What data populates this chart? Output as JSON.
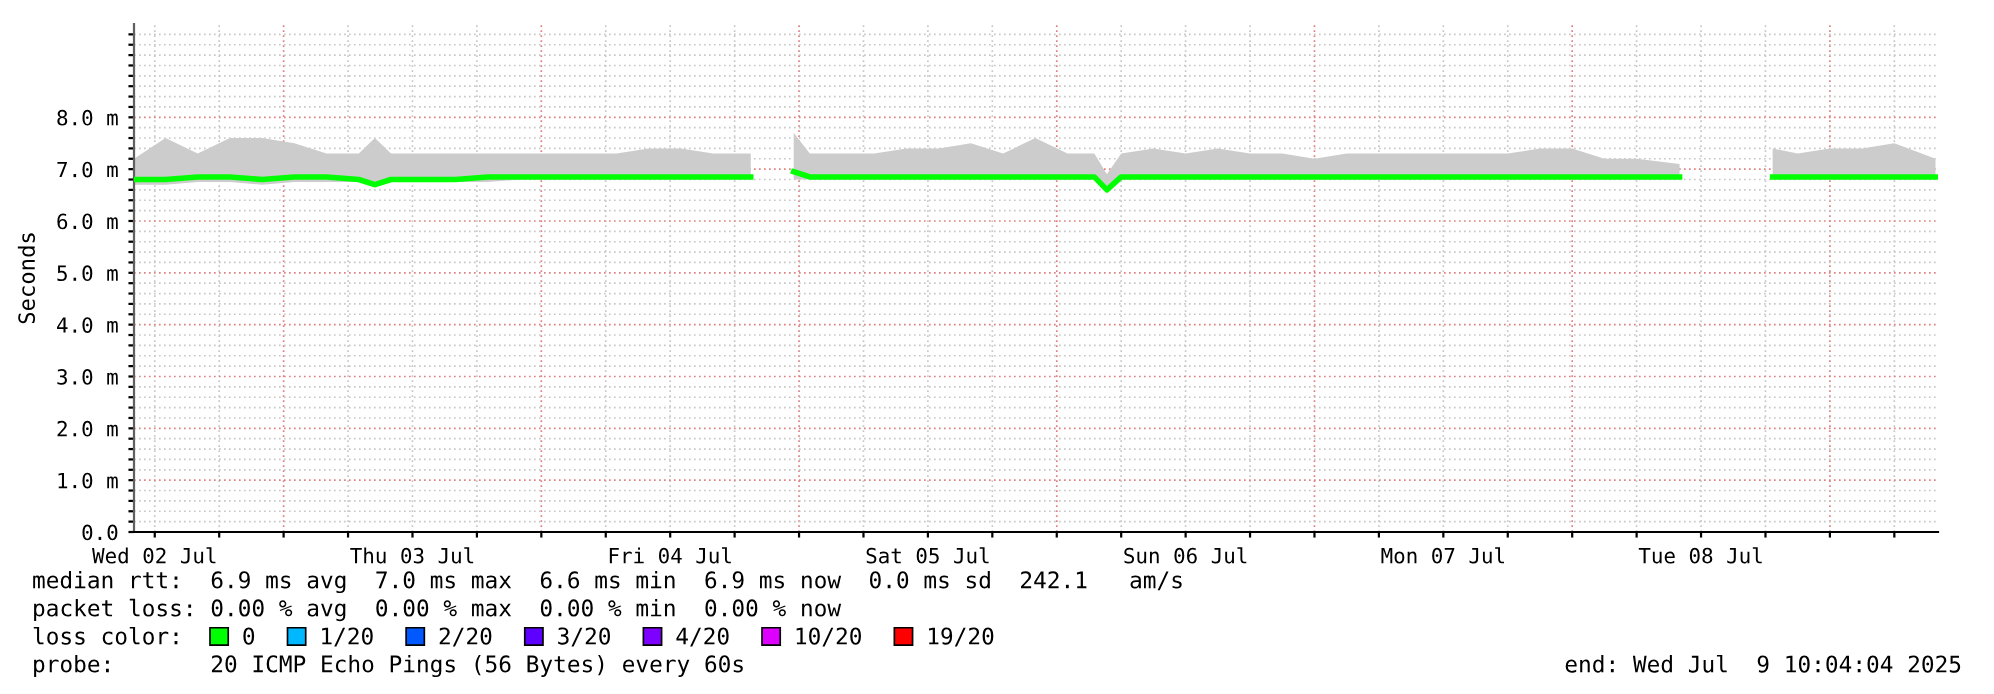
{
  "chart_data": {
    "type": "line",
    "ylabel": "Seconds",
    "legend_title": "loss color:",
    "legend": "bottom",
    "grid": true,
    "xlim": [
      "2025-07-02T10:04",
      "2025-07-09T10:04"
    ],
    "ylim": [
      0,
      9.8
    ],
    "xticks": [
      {
        "value": "2025-07-02T12:00",
        "label": "Wed 02 Jul"
      },
      {
        "value": "2025-07-02T18:00",
        "label": null
      },
      {
        "value": "2025-07-03T00:00",
        "label": null
      },
      {
        "value": "2025-07-03T06:00",
        "label": null
      },
      {
        "value": "2025-07-03T12:00",
        "label": "Thu 03 Jul"
      },
      {
        "value": "2025-07-03T18:00",
        "label": null
      },
      {
        "value": "2025-07-04T00:00",
        "label": null
      },
      {
        "value": "2025-07-04T06:00",
        "label": null
      },
      {
        "value": "2025-07-04T12:00",
        "label": "Fri 04 Jul"
      },
      {
        "value": "2025-07-04T18:00",
        "label": null
      },
      {
        "value": "2025-07-05T00:00",
        "label": null
      },
      {
        "value": "2025-07-05T06:00",
        "label": null
      },
      {
        "value": "2025-07-05T12:00",
        "label": "Sat 05 Jul"
      },
      {
        "value": "2025-07-05T18:00",
        "label": null
      },
      {
        "value": "2025-07-06T00:00",
        "label": null
      },
      {
        "value": "2025-07-06T06:00",
        "label": null
      },
      {
        "value": "2025-07-06T12:00",
        "label": "Sun 06 Jul"
      },
      {
        "value": "2025-07-06T18:00",
        "label": null
      },
      {
        "value": "2025-07-07T00:00",
        "label": null
      },
      {
        "value": "2025-07-07T06:00",
        "label": null
      },
      {
        "value": "2025-07-07T12:00",
        "label": "Mon 07 Jul"
      },
      {
        "value": "2025-07-07T18:00",
        "label": null
      },
      {
        "value": "2025-07-08T00:00",
        "label": null
      },
      {
        "value": "2025-07-08T06:00",
        "label": null
      },
      {
        "value": "2025-07-08T12:00",
        "label": "Tue 08 Jul"
      },
      {
        "value": "2025-07-08T18:00",
        "label": null
      },
      {
        "value": "2025-07-09T00:00",
        "label": null
      },
      {
        "value": "2025-07-09T06:00",
        "label": null
      }
    ],
    "yticks": [
      {
        "value": 0,
        "label": "0.0"
      },
      {
        "value": 0.2,
        "label": null
      },
      {
        "value": 0.4,
        "label": null
      },
      {
        "value": 0.6,
        "label": null
      },
      {
        "value": 0.8,
        "label": null
      },
      {
        "value": 1,
        "label": "1.0 m"
      },
      {
        "value": 1.2,
        "label": null
      },
      {
        "value": 1.4,
        "label": null
      },
      {
        "value": 1.6,
        "label": null
      },
      {
        "value": 1.8,
        "label": null
      },
      {
        "value": 2,
        "label": "2.0 m"
      },
      {
        "value": 2.2,
        "label": null
      },
      {
        "value": 2.4,
        "label": null
      },
      {
        "value": 2.6,
        "label": null
      },
      {
        "value": 2.8,
        "label": null
      },
      {
        "value": 3,
        "label": "3.0 m"
      },
      {
        "value": 3.2,
        "label": null
      },
      {
        "value": 3.4,
        "label": null
      },
      {
        "value": 3.6,
        "label": null
      },
      {
        "value": 3.8,
        "label": null
      },
      {
        "value": 4,
        "label": "4.0 m"
      },
      {
        "value": 4.2,
        "label": null
      },
      {
        "value": 4.4,
        "label": null
      },
      {
        "value": 4.6,
        "label": null
      },
      {
        "value": 4.8,
        "label": null
      },
      {
        "value": 5,
        "label": "5.0 m"
      },
      {
        "value": 5.2,
        "label": null
      },
      {
        "value": 5.4,
        "label": null
      },
      {
        "value": 5.6,
        "label": null
      },
      {
        "value": 5.8,
        "label": null
      },
      {
        "value": 6,
        "label": "6.0 m"
      },
      {
        "value": 6.2,
        "label": null
      },
      {
        "value": 6.4,
        "label": null
      },
      {
        "value": 6.6,
        "label": null
      },
      {
        "value": 6.8,
        "label": null
      },
      {
        "value": 7,
        "label": "7.0 m"
      },
      {
        "value": 7.2,
        "label": null
      },
      {
        "value": 7.4,
        "label": null
      },
      {
        "value": 7.6,
        "label": null
      },
      {
        "value": 7.8,
        "label": null
      },
      {
        "value": 8,
        "label": "8.0 m"
      },
      {
        "value": 8.2,
        "label": null
      },
      {
        "value": 8.4,
        "label": null
      },
      {
        "value": 8.6,
        "label": null
      },
      {
        "value": 8.8,
        "label": null
      },
      {
        "value": 9,
        "label": null
      },
      {
        "value": 9.2,
        "label": null
      },
      {
        "value": 9.4,
        "label": null
      },
      {
        "value": 9.6,
        "label": null
      }
    ],
    "series": [
      {
        "name": "0",
        "color": "#00ff00",
        "x": [
          "2025-07-02T10:04",
          "2025-07-02T13:00",
          "2025-07-02T16:00",
          "2025-07-02T19:00",
          "2025-07-02T22:00",
          "2025-07-03T01:00",
          "2025-07-03T04:00",
          "2025-07-03T07:00",
          "2025-07-03T08:30",
          "2025-07-03T10:00",
          "2025-07-03T13:00",
          "2025-07-03T16:00",
          "2025-07-03T19:00",
          "2025-07-03T22:00",
          "2025-07-04T01:00",
          "2025-07-04T04:00",
          "2025-07-04T07:00",
          "2025-07-04T10:00",
          "2025-07-04T13:00",
          "2025-07-04T16:00",
          "2025-07-04T19:30",
          "2025-07-04T21:30",
          "2025-07-04T23:30",
          "2025-07-05T01:00",
          "2025-07-05T04:00",
          "2025-07-05T07:00",
          "2025-07-05T10:00",
          "2025-07-05T13:00",
          "2025-07-05T16:00",
          "2025-07-05T19:00",
          "2025-07-05T22:00",
          "2025-07-06T01:00",
          "2025-07-06T03:30",
          "2025-07-06T04:40",
          "2025-07-06T06:00",
          "2025-07-06T09:00",
          "2025-07-06T12:00",
          "2025-07-06T15:00",
          "2025-07-06T18:00",
          "2025-07-06T21:00",
          "2025-07-07T00:00",
          "2025-07-07T03:00",
          "2025-07-07T06:00",
          "2025-07-07T09:00",
          "2025-07-07T12:00",
          "2025-07-07T15:00",
          "2025-07-07T18:00",
          "2025-07-07T21:00",
          "2025-07-08T00:00",
          "2025-07-08T03:00",
          "2025-07-08T06:00",
          "2025-07-08T10:00",
          "2025-07-08T14:00",
          "2025-07-08T18:40",
          "2025-07-08T21:00",
          "2025-07-09T00:00",
          "2025-07-09T03:00",
          "2025-07-09T06:00",
          "2025-07-09T09:50"
        ],
        "values": [
          6.8,
          6.8,
          6.85,
          6.85,
          6.8,
          6.85,
          6.85,
          6.8,
          6.7,
          6.8,
          6.8,
          6.8,
          6.85,
          6.85,
          6.85,
          6.85,
          6.85,
          6.85,
          6.85,
          6.85,
          6.85,
          null,
          6.95,
          6.85,
          6.85,
          6.85,
          6.85,
          6.85,
          6.85,
          6.85,
          6.85,
          6.85,
          6.85,
          6.6,
          6.85,
          6.85,
          6.85,
          6.85,
          6.85,
          6.85,
          6.85,
          6.85,
          6.85,
          6.85,
          6.85,
          6.85,
          6.85,
          6.85,
          6.85,
          6.85,
          6.85,
          6.85,
          null,
          6.85,
          6.85,
          6.85,
          6.85,
          6.85,
          6.85
        ],
        "lower": [
          6.7,
          6.7,
          6.75,
          6.75,
          6.7,
          6.75,
          6.75,
          6.75,
          6.65,
          6.75,
          6.75,
          6.75,
          6.75,
          6.8,
          6.8,
          6.8,
          6.8,
          6.8,
          6.8,
          6.8,
          6.8,
          null,
          6.8,
          6.8,
          6.8,
          6.8,
          6.8,
          6.8,
          6.8,
          6.8,
          6.8,
          6.8,
          6.8,
          6.55,
          6.8,
          6.8,
          6.8,
          6.8,
          6.8,
          6.8,
          6.8,
          6.8,
          6.8,
          6.8,
          6.8,
          6.8,
          6.8,
          6.8,
          6.8,
          6.8,
          6.8,
          6.8,
          null,
          6.8,
          6.8,
          6.8,
          6.8,
          6.8,
          6.8
        ],
        "upper": [
          7.2,
          7.6,
          7.3,
          7.6,
          7.6,
          7.5,
          7.3,
          7.3,
          7.6,
          7.3,
          7.3,
          7.3,
          7.3,
          7.3,
          7.3,
          7.3,
          7.3,
          7.4,
          7.4,
          7.3,
          7.3,
          null,
          7.7,
          7.3,
          7.3,
          7.3,
          7.4,
          7.4,
          7.5,
          7.3,
          7.6,
          7.3,
          7.3,
          6.9,
          7.3,
          7.4,
          7.3,
          7.4,
          7.3,
          7.3,
          7.2,
          7.3,
          7.3,
          7.3,
          7.3,
          7.3,
          7.3,
          7.4,
          7.4,
          7.2,
          7.2,
          7.1,
          null,
          7.4,
          7.3,
          7.4,
          7.4,
          7.5,
          7.2
        ]
      },
      {
        "name": "1/20",
        "color": "#00b8ff"
      },
      {
        "name": "2/20",
        "color": "#0059ff"
      },
      {
        "name": "3/20",
        "color": "#5e00ff"
      },
      {
        "name": "4/20",
        "color": "#7e00ff"
      },
      {
        "name": "10/20",
        "color": "#dd00ff"
      },
      {
        "name": "19/20",
        "color": "#ff0000"
      }
    ],
    "annotations": [
      "median rtt:  6.9 ms avg  7.0 ms max  6.6 ms min  6.9 ms now  0.0 ms sd  242.1   am/s",
      "packet loss: 0.00 % avg  0.00 % max  0.00 % min  0.00 % now",
      "probe:       20 ICMP Echo Pings (56 Bytes) every 60s",
      "end: Wed Jul  9 10:04:04 2025"
    ]
  }
}
